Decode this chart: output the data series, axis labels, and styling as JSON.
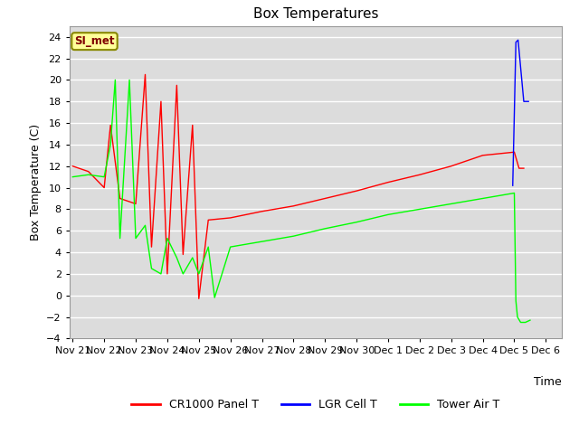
{
  "title": "Box Temperatures",
  "ylabel": "Box Temperature (C)",
  "xlabel": "Time",
  "ylim": [
    -4,
    25
  ],
  "yticks": [
    -4,
    -2,
    0,
    2,
    4,
    6,
    8,
    10,
    12,
    14,
    16,
    18,
    20,
    22,
    24
  ],
  "plot_bg_color": "#dcdcdc",
  "fig_bg_color": "#ffffff",
  "annotation_text": "SI_met",
  "annotation_bg": "#ffff99",
  "annotation_border": "#888800",
  "cr1000_x": [
    0,
    0.5,
    1.0,
    1.2,
    1.5,
    2.0,
    2.3,
    2.5,
    2.8,
    3.0,
    3.3,
    3.5,
    3.8,
    4.0,
    4.3,
    5.0,
    6.0,
    7.0,
    8.0,
    9.0,
    10.0,
    11.0,
    12.0,
    13.0,
    14.0,
    14.15,
    14.3
  ],
  "cr1000_y": [
    12.0,
    11.5,
    10.0,
    15.8,
    9.0,
    8.5,
    20.5,
    4.5,
    18.0,
    2.0,
    19.5,
    3.8,
    15.8,
    -0.3,
    7.0,
    7.2,
    7.8,
    8.3,
    9.0,
    9.7,
    10.5,
    11.2,
    12.0,
    13.0,
    13.3,
    11.8,
    11.8
  ],
  "lgr_x": [
    13.95,
    14.05,
    14.12,
    14.3,
    14.45
  ],
  "lgr_y": [
    10.2,
    23.5,
    23.7,
    18.0,
    18.0
  ],
  "tower_x": [
    0,
    0.5,
    1.0,
    1.2,
    1.35,
    1.5,
    1.8,
    2.0,
    2.3,
    2.5,
    2.8,
    3.0,
    3.3,
    3.5,
    3.8,
    4.0,
    4.3,
    4.5,
    5.0,
    6.0,
    7.0,
    8.0,
    9.0,
    10.0,
    11.0,
    12.0,
    13.0,
    14.0,
    14.05,
    14.1,
    14.2,
    14.35,
    14.5
  ],
  "tower_y": [
    11.0,
    11.2,
    11.0,
    14.0,
    20.0,
    5.3,
    20.0,
    5.3,
    6.5,
    2.5,
    2.0,
    5.3,
    3.5,
    2.0,
    3.5,
    2.0,
    4.5,
    -0.2,
    4.5,
    5.0,
    5.5,
    6.2,
    6.8,
    7.5,
    8.0,
    8.5,
    9.0,
    9.5,
    -0.5,
    -2.0,
    -2.5,
    -2.5,
    -2.3
  ],
  "xtick_labels": [
    "Nov 21",
    "Nov 22",
    "Nov 23",
    "Nov 24",
    "Nov 25",
    "Nov 26",
    "Nov 27",
    "Nov 28",
    "Nov 29",
    "Nov 30",
    "Dec 1",
    "Dec 2",
    "Dec 3",
    "Dec 4",
    "Dec 5",
    "Dec 6"
  ],
  "xtick_positions": [
    0,
    1,
    2,
    3,
    4,
    5,
    6,
    7,
    8,
    9,
    10,
    11,
    12,
    13,
    14,
    15
  ],
  "legend": [
    {
      "label": "CR1000 Panel T",
      "color": "red"
    },
    {
      "label": "LGR Cell T",
      "color": "blue"
    },
    {
      "label": "Tower Air T",
      "color": "lime"
    }
  ]
}
